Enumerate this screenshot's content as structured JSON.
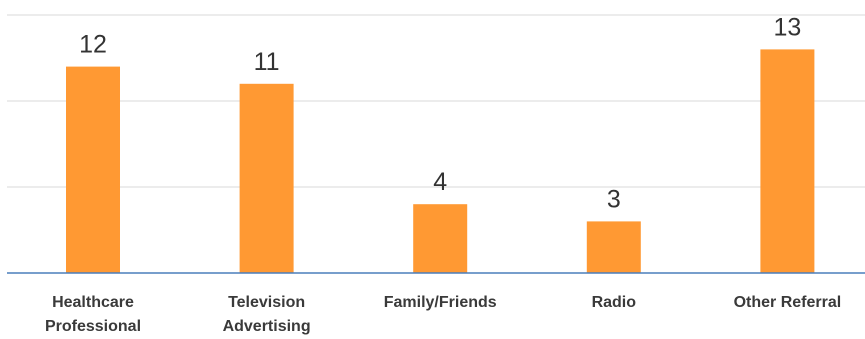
{
  "chart_data": {
    "type": "bar",
    "categories": [
      [
        "Healthcare",
        "Professional"
      ],
      [
        "Television",
        "Advertising"
      ],
      [
        "Family/Friends"
      ],
      [
        "Radio"
      ],
      [
        "Other Referral"
      ]
    ],
    "values": [
      12,
      11,
      4,
      3,
      13
    ],
    "data_labels": [
      "12",
      "11",
      "4",
      "3",
      "13"
    ],
    "ylim": [
      0,
      15
    ],
    "ytick_step": 5,
    "grid": true,
    "legend": "none",
    "colors": {
      "bar": "#FF9933",
      "grid": "#D9D9D9",
      "baseline": "#4A7EBB"
    }
  }
}
